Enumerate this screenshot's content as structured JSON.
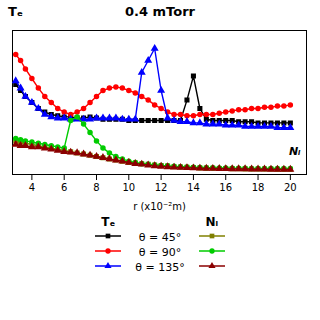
{
  "chart_data": {
    "type": "line",
    "title": "0.4 mTorr",
    "x_label": "r (x10⁻²m)",
    "annotations": [
      "Tₑ",
      "Nᵢ"
    ],
    "xlim": [
      2.8,
      21.0
    ],
    "xticks": [
      4,
      6,
      8,
      10,
      12,
      14,
      16,
      18,
      20
    ],
    "ylim": [
      0.0,
      12.0
    ],
    "yticks": [],
    "tick_labels": "x",
    "x": [
      3.0,
      3.3,
      3.6,
      4.0,
      4.4,
      4.8,
      5.2,
      5.6,
      6.0,
      6.4,
      6.8,
      7.2,
      7.6,
      8.0,
      8.4,
      8.8,
      9.2,
      9.6,
      10.0,
      10.4,
      10.8,
      11.2,
      11.6,
      12.0,
      12.4,
      12.8,
      13.2,
      13.6,
      14.0,
      14.4,
      14.8,
      15.2,
      15.6,
      16.0,
      16.4,
      16.8,
      17.2,
      17.6,
      18.0,
      18.4,
      18.8,
      19.2,
      19.6,
      20.0
    ],
    "series": [
      {
        "name": "θ = 45°",
        "color": "#000000",
        "marker": "square",
        "values": [
          7.5,
          7.0,
          6.5,
          6.0,
          5.5,
          5.2,
          5.0,
          4.9,
          4.8,
          4.8,
          4.7,
          4.7,
          4.8,
          4.7,
          4.6,
          4.6,
          4.6,
          4.6,
          4.5,
          4.5,
          4.5,
          4.5,
          4.5,
          4.5,
          4.5,
          4.5,
          4.5,
          6.2,
          8.2,
          5.5,
          4.6,
          4.5,
          4.5,
          4.5,
          4.5,
          4.4,
          4.4,
          4.4,
          4.3,
          4.3,
          4.3,
          4.3,
          4.3,
          4.3
        ]
      },
      {
        "name": "θ = 90°",
        "color": "#ff0000",
        "marker": "circle",
        "values": [
          10.0,
          9.5,
          8.8,
          8.0,
          7.2,
          6.5,
          6.0,
          5.5,
          5.2,
          5.0,
          5.2,
          5.5,
          6.0,
          6.5,
          7.0,
          7.2,
          7.3,
          7.2,
          7.0,
          6.8,
          6.5,
          6.2,
          5.8,
          5.5,
          5.2,
          5.0,
          5.0,
          4.9,
          4.9,
          5.0,
          5.0,
          5.0,
          5.1,
          5.2,
          5.3,
          5.4,
          5.4,
          5.5,
          5.5,
          5.6,
          5.6,
          5.7,
          5.7,
          5.8
        ]
      },
      {
        "name": "θ = 135°",
        "color": "#0000ff",
        "marker": "triangle",
        "values": [
          7.8,
          7.2,
          6.5,
          6.0,
          5.5,
          5.0,
          4.8,
          4.7,
          4.7,
          4.6,
          4.6,
          4.6,
          4.6,
          4.7,
          4.7,
          4.7,
          4.7,
          4.6,
          4.6,
          4.6,
          8.5,
          9.5,
          10.5,
          7.0,
          4.7,
          4.5,
          4.4,
          4.4,
          4.3,
          4.3,
          4.2,
          4.2,
          4.2,
          4.1,
          4.1,
          4.1,
          4.0,
          4.0,
          4.0,
          4.0,
          4.0,
          3.9,
          3.9,
          3.9
        ]
      },
      {
        "name": "θ = 45°",
        "color": "#808000",
        "marker": "square",
        "values": [
          2.8,
          2.7,
          2.6,
          2.5,
          2.4,
          2.3,
          2.2,
          2.1,
          2.0,
          1.9,
          1.8,
          1.7,
          1.6,
          1.5,
          1.4,
          1.3,
          1.2,
          1.1,
          1.0,
          0.95,
          0.9,
          0.85,
          0.8,
          0.75,
          0.7,
          0.65,
          0.62,
          0.6,
          0.58,
          0.55,
          0.53,
          0.52,
          0.5,
          0.5,
          0.49,
          0.48,
          0.47,
          0.46,
          0.46,
          0.45,
          0.45,
          0.44,
          0.44,
          0.44
        ]
      },
      {
        "name": "θ = 90°",
        "color": "#00cc00",
        "marker": "circle",
        "values": [
          3.0,
          2.9,
          2.8,
          2.7,
          2.6,
          2.5,
          2.4,
          2.3,
          2.2,
          4.5,
          4.8,
          4.2,
          3.5,
          2.8,
          2.2,
          1.8,
          1.5,
          1.3,
          1.1,
          1.0,
          0.9,
          0.85,
          0.8,
          0.75,
          0.72,
          0.68,
          0.65,
          0.62,
          0.6,
          0.58,
          0.57,
          0.56,
          0.55,
          0.54,
          0.53,
          0.52,
          0.52,
          0.51,
          0.51,
          0.5,
          0.5,
          0.5,
          0.49,
          0.49
        ]
      },
      {
        "name": "θ = 135°",
        "color": "#8b0000",
        "marker": "triangle",
        "values": [
          2.5,
          2.4,
          2.4,
          2.3,
          2.3,
          2.2,
          2.1,
          2.0,
          1.9,
          1.85,
          1.8,
          1.7,
          1.6,
          1.5,
          1.4,
          1.3,
          1.2,
          1.1,
          1.0,
          0.9,
          0.85,
          0.78,
          0.72,
          0.68,
          0.64,
          0.6,
          0.58,
          0.56,
          0.54,
          0.52,
          0.51,
          0.5,
          0.49,
          0.48,
          0.47,
          0.46,
          0.46,
          0.45,
          0.44,
          0.44,
          0.43,
          0.43,
          0.42,
          0.42
        ]
      }
    ]
  }
}
